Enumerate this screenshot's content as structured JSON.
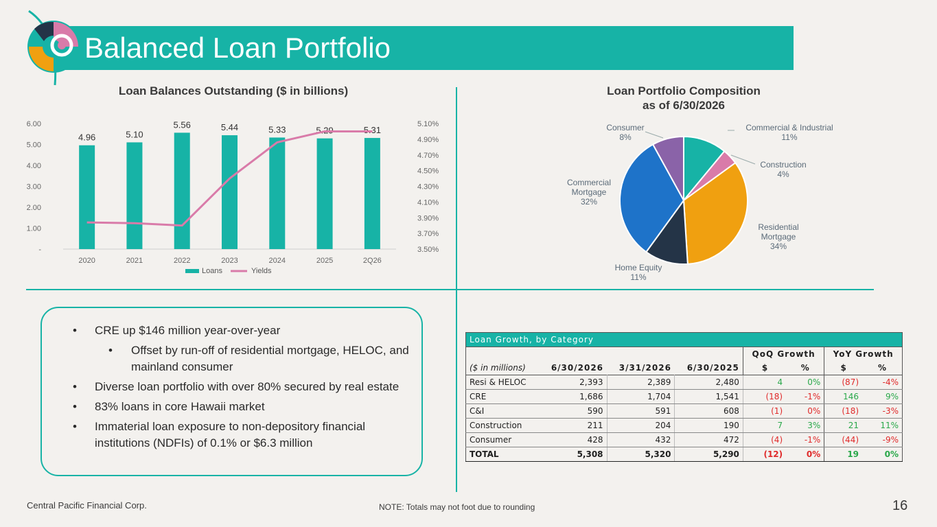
{
  "slide": {
    "title": "Balanced Loan Portfolio",
    "footer_company": "Central Pacific Financial Corp.",
    "footer_note": "NOTE: Totals may not foot due to rounding",
    "page_number": "16"
  },
  "colors": {
    "teal": "#17b3a6",
    "pink_line": "#d97ba9",
    "negative": "#e02a2a",
    "positive": "#2aa84a"
  },
  "chart_data": [
    {
      "type": "bar",
      "title": "Loan Balances Outstanding ($ in billions)",
      "categories": [
        "2020",
        "2021",
        "2022",
        "2023",
        "2024",
        "2025",
        "2Q26"
      ],
      "series": [
        {
          "name": "Loans",
          "type": "bar",
          "axis": "left",
          "values": [
            4.96,
            5.1,
            5.56,
            5.44,
            5.33,
            5.29,
            5.31
          ],
          "labels": [
            "4.96",
            "5.10",
            "5.56",
            "5.44",
            "5.33",
            "5.29",
            "5.31"
          ],
          "color": "#17b3a6"
        },
        {
          "name": "Yields",
          "type": "line",
          "axis": "right",
          "values": [
            3.84,
            3.83,
            3.8,
            4.4,
            4.86,
            5.0,
            5.0
          ],
          "color": "#d97ba9"
        }
      ],
      "y_left": {
        "ylim": [
          0,
          6
        ],
        "ticks": [
          "-",
          "1.00",
          "2.00",
          "3.00",
          "4.00",
          "5.00",
          "6.00"
        ]
      },
      "y_right": {
        "ylim": [
          3.5,
          5.1
        ],
        "ticks": [
          "3.50%",
          "3.70%",
          "3.90%",
          "4.10%",
          "4.30%",
          "4.50%",
          "4.70%",
          "4.90%",
          "5.10%"
        ]
      },
      "legend": "bottom"
    },
    {
      "type": "pie",
      "title_line1": "Loan Portfolio Composition",
      "title_line2": "as of 6/30/2026",
      "slices": [
        {
          "label": "Commercial & Industrial",
          "pct_label": "11%",
          "value": 11,
          "color": "#17b3a6"
        },
        {
          "label": "Construction",
          "pct_label": "4%",
          "value": 4,
          "color": "#d97ba9"
        },
        {
          "label": "Residential Mortgage",
          "pct_label": "34%",
          "value": 34,
          "color": "#f0a010"
        },
        {
          "label": "Home Equity",
          "pct_label": "11%",
          "value": 11,
          "color": "#243447"
        },
        {
          "label": "Commercial Mortgage",
          "pct_label": "32%",
          "value": 32,
          "color": "#1e73c9"
        },
        {
          "label": "Consumer",
          "pct_label": "8%",
          "value": 8,
          "color": "#8a63a8"
        }
      ]
    }
  ],
  "bullets": [
    {
      "level": 1,
      "text": "CRE up $146 million year-over-year"
    },
    {
      "level": 2,
      "text": "Offset by run-off of residential mortgage, HELOC, and mainland consumer"
    },
    {
      "level": 1,
      "text": "Diverse loan portfolio with over 80% secured by real estate"
    },
    {
      "level": 1,
      "text": "83% loans in core Hawaii market"
    },
    {
      "level": 1,
      "text": "Immaterial loan exposure to non-depository financial institutions (NDFIs) of 0.1% or $6.3 million"
    }
  ],
  "table": {
    "caption": "Loan Growth, by Category",
    "group_qoq": "QoQ Growth",
    "group_yoy": "YoY Growth",
    "col_units": "($ in millions)",
    "col_d1": "6/30/2026",
    "col_d2": "3/31/2026",
    "col_d3": "6/30/2025",
    "col_dollar": "$",
    "col_pct": "%",
    "rows": [
      {
        "name": "Resi & HELOC",
        "d1": "2,393",
        "d2": "2,389",
        "d3": "2,480",
        "qd": "4",
        "qp": "0%",
        "yd": "(87)",
        "yp": "-4%",
        "qs": "pos",
        "ys": "neg"
      },
      {
        "name": "CRE",
        "d1": "1,686",
        "d2": "1,704",
        "d3": "1,541",
        "qd": "(18)",
        "qp": "-1%",
        "yd": "146",
        "yp": "9%",
        "qs": "neg",
        "ys": "pos"
      },
      {
        "name": "C&I",
        "d1": "590",
        "d2": "591",
        "d3": "608",
        "qd": "(1)",
        "qp": "0%",
        "yd": "(18)",
        "yp": "-3%",
        "qs": "neg",
        "ys": "neg"
      },
      {
        "name": "Construction",
        "d1": "211",
        "d2": "204",
        "d3": "190",
        "qd": "7",
        "qp": "3%",
        "yd": "21",
        "yp": "11%",
        "qs": "pos",
        "ys": "pos"
      },
      {
        "name": "Consumer",
        "d1": "428",
        "d2": "432",
        "d3": "472",
        "qd": "(4)",
        "qp": "-1%",
        "yd": "(44)",
        "yp": "-9%",
        "qs": "neg",
        "ys": "neg"
      }
    ],
    "total": {
      "name": "TOTAL",
      "d1": "5,308",
      "d2": "5,320",
      "d3": "5,290",
      "qd": "(12)",
      "qp": "0%",
      "yd": "19",
      "yp": "0%",
      "qs": "neg",
      "ys": "pos"
    }
  }
}
